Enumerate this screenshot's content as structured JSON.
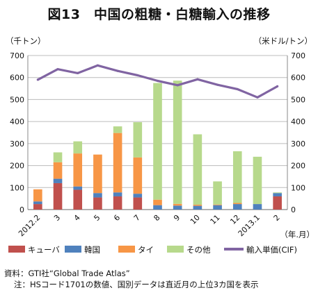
{
  "title": "図13　中国の粗糖・白糖輸入の推移",
  "chart_data": {
    "type": "bar",
    "stacked": true,
    "categories": [
      "2012.2",
      "3",
      "4",
      "5",
      "6",
      "7",
      "8",
      "9",
      "10",
      "11",
      "12",
      "2013.1",
      "2"
    ],
    "xlabel": "（年.月）",
    "ylabel_left": "（千トン）",
    "ylabel_right": "（米ドル/トン）",
    "ylim_left": [
      0,
      700
    ],
    "ylim_right": [
      0,
      700
    ],
    "yticks": [
      0,
      100,
      200,
      300,
      400,
      500,
      600,
      700
    ],
    "grid": true,
    "legend_position": "bottom",
    "series": [
      {
        "name": "キューバ",
        "color": "#c0504d",
        "axis": "left",
        "values": [
          25,
          120,
          90,
          55,
          60,
          55,
          0,
          0,
          0,
          0,
          0,
          0,
          60
        ]
      },
      {
        "name": "韓国",
        "color": "#4f81bd",
        "axis": "left",
        "values": [
          12,
          20,
          15,
          20,
          18,
          17,
          20,
          18,
          17,
          20,
          25,
          25,
          15
        ]
      },
      {
        "name": "タイ",
        "color": "#f79646",
        "axis": "left",
        "values": [
          55,
          75,
          150,
          175,
          270,
          165,
          25,
          8,
          5,
          3,
          5,
          0,
          0
        ]
      },
      {
        "name": "その他",
        "color": "#b7d98c",
        "axis": "left",
        "values": [
          0,
          45,
          55,
          0,
          30,
          160,
          530,
          560,
          320,
          105,
          235,
          215,
          3
        ]
      },
      {
        "name": "輸入単価(CIF)",
        "color": "#8064a2",
        "axis": "right",
        "type": "line",
        "values": [
          590,
          638,
          620,
          655,
          630,
          610,
          585,
          565,
          592,
          567,
          547,
          510,
          560
        ]
      }
    ]
  },
  "notes": {
    "source": "資料：GTI社“Global Trade Atlas”",
    "note": "注：HSコード1701の数値、国別データは直近月の上位3カ国を表示"
  }
}
